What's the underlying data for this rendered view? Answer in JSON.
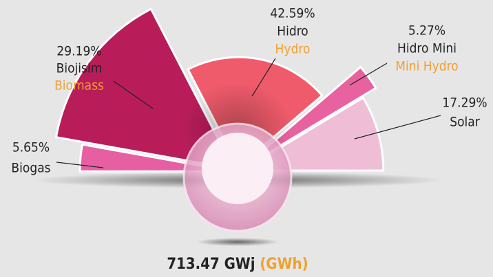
{
  "chart_data": {
    "type": "pie",
    "half": true,
    "categories": [
      "Biogas",
      "Biojisim",
      "Hidro",
      "Hidro Mini",
      "Solar"
    ],
    "names_en": [
      null,
      "Biomass",
      "Hydro",
      "Mini Hydro",
      null
    ],
    "values": [
      5.65,
      29.19,
      42.59,
      5.27,
      17.29
    ],
    "value_labels": [
      "5.65%",
      "29.19%",
      "42.59%",
      "5.27%",
      "17.29%"
    ],
    "colors": [
      "#e65fa3",
      "#b81d5a",
      "#ef5b6b",
      "#e8629f",
      "#f0bdd7"
    ],
    "total": "713.47 GWj",
    "total_unit": "(GWh)"
  }
}
